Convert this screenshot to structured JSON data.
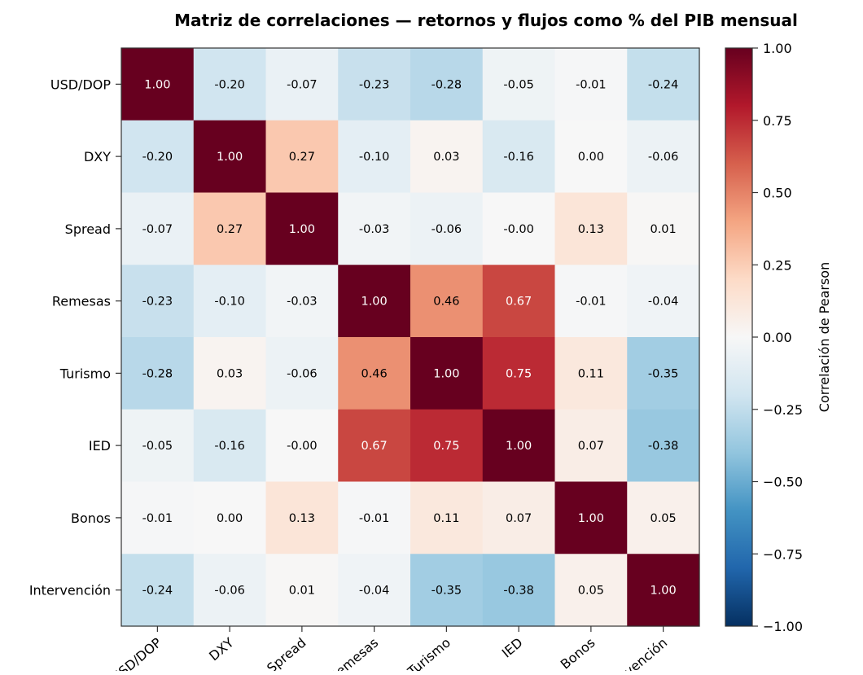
{
  "chart_data": {
    "type": "heatmap",
    "title": "Matriz de correlaciones — retornos y flujos como % del PIB mensual",
    "x_labels": [
      "USD/DOP",
      "DXY",
      "Spread",
      "Remesas",
      "Turismo",
      "IED",
      "Bonos",
      "Intervención"
    ],
    "y_labels": [
      "USD/DOP",
      "DXY",
      "Spread",
      "Remesas",
      "Turismo",
      "IED",
      "Bonos",
      "Intervención"
    ],
    "values": [
      [
        1.0,
        -0.2,
        -0.07,
        -0.23,
        -0.28,
        -0.05,
        -0.01,
        -0.24
      ],
      [
        -0.2,
        1.0,
        0.27,
        -0.1,
        0.03,
        -0.16,
        0.0,
        -0.06
      ],
      [
        -0.07,
        0.27,
        1.0,
        -0.03,
        -0.06,
        -0.0,
        0.13,
        0.01
      ],
      [
        -0.23,
        -0.1,
        -0.03,
        1.0,
        0.46,
        0.67,
        -0.01,
        -0.04
      ],
      [
        -0.28,
        0.03,
        -0.06,
        0.46,
        1.0,
        0.75,
        0.11,
        -0.35
      ],
      [
        -0.05,
        -0.16,
        -0.0,
        0.67,
        0.75,
        1.0,
        0.07,
        -0.38
      ],
      [
        -0.01,
        0.0,
        0.13,
        -0.01,
        0.11,
        0.07,
        1.0,
        0.05
      ],
      [
        -0.24,
        -0.06,
        0.01,
        -0.04,
        -0.35,
        -0.38,
        0.05,
        1.0
      ]
    ],
    "cell_labels": [
      [
        "1.00",
        "-0.20",
        "-0.07",
        "-0.23",
        "-0.28",
        "-0.05",
        "-0.01",
        "-0.24"
      ],
      [
        "-0.20",
        "1.00",
        "0.27",
        "-0.10",
        "0.03",
        "-0.16",
        "0.00",
        "-0.06"
      ],
      [
        "-0.07",
        "0.27",
        "1.00",
        "-0.03",
        "-0.06",
        "-0.00",
        "0.13",
        "0.01"
      ],
      [
        "-0.23",
        "-0.10",
        "-0.03",
        "1.00",
        "0.46",
        "0.67",
        "-0.01",
        "-0.04"
      ],
      [
        "-0.28",
        "0.03",
        "-0.06",
        "0.46",
        "1.00",
        "0.75",
        "0.11",
        "-0.35"
      ],
      [
        "-0.05",
        "-0.16",
        "-0.00",
        "0.67",
        "0.75",
        "1.00",
        "0.07",
        "-0.38"
      ],
      [
        "-0.01",
        "0.00",
        "0.13",
        "-0.01",
        "0.11",
        "0.07",
        "1.00",
        "0.05"
      ],
      [
        "-0.24",
        "-0.06",
        "0.01",
        "-0.04",
        "-0.35",
        "-0.38",
        "0.05",
        "1.00"
      ]
    ],
    "colormap": "RdBu_r",
    "vmin": -1.0,
    "vmax": 1.0,
    "colorbar": {
      "label": "Correlación de Pearson",
      "ticks": [
        1.0,
        0.75,
        0.5,
        0.25,
        0.0,
        -0.25,
        -0.5,
        -0.75,
        -1.0
      ],
      "tick_labels": [
        "1.00",
        "0.75",
        "0.50",
        "0.25",
        "0.00",
        "−0.25",
        "−0.50",
        "−0.75",
        "−1.00"
      ],
      "placement": "right"
    },
    "grid": false
  }
}
